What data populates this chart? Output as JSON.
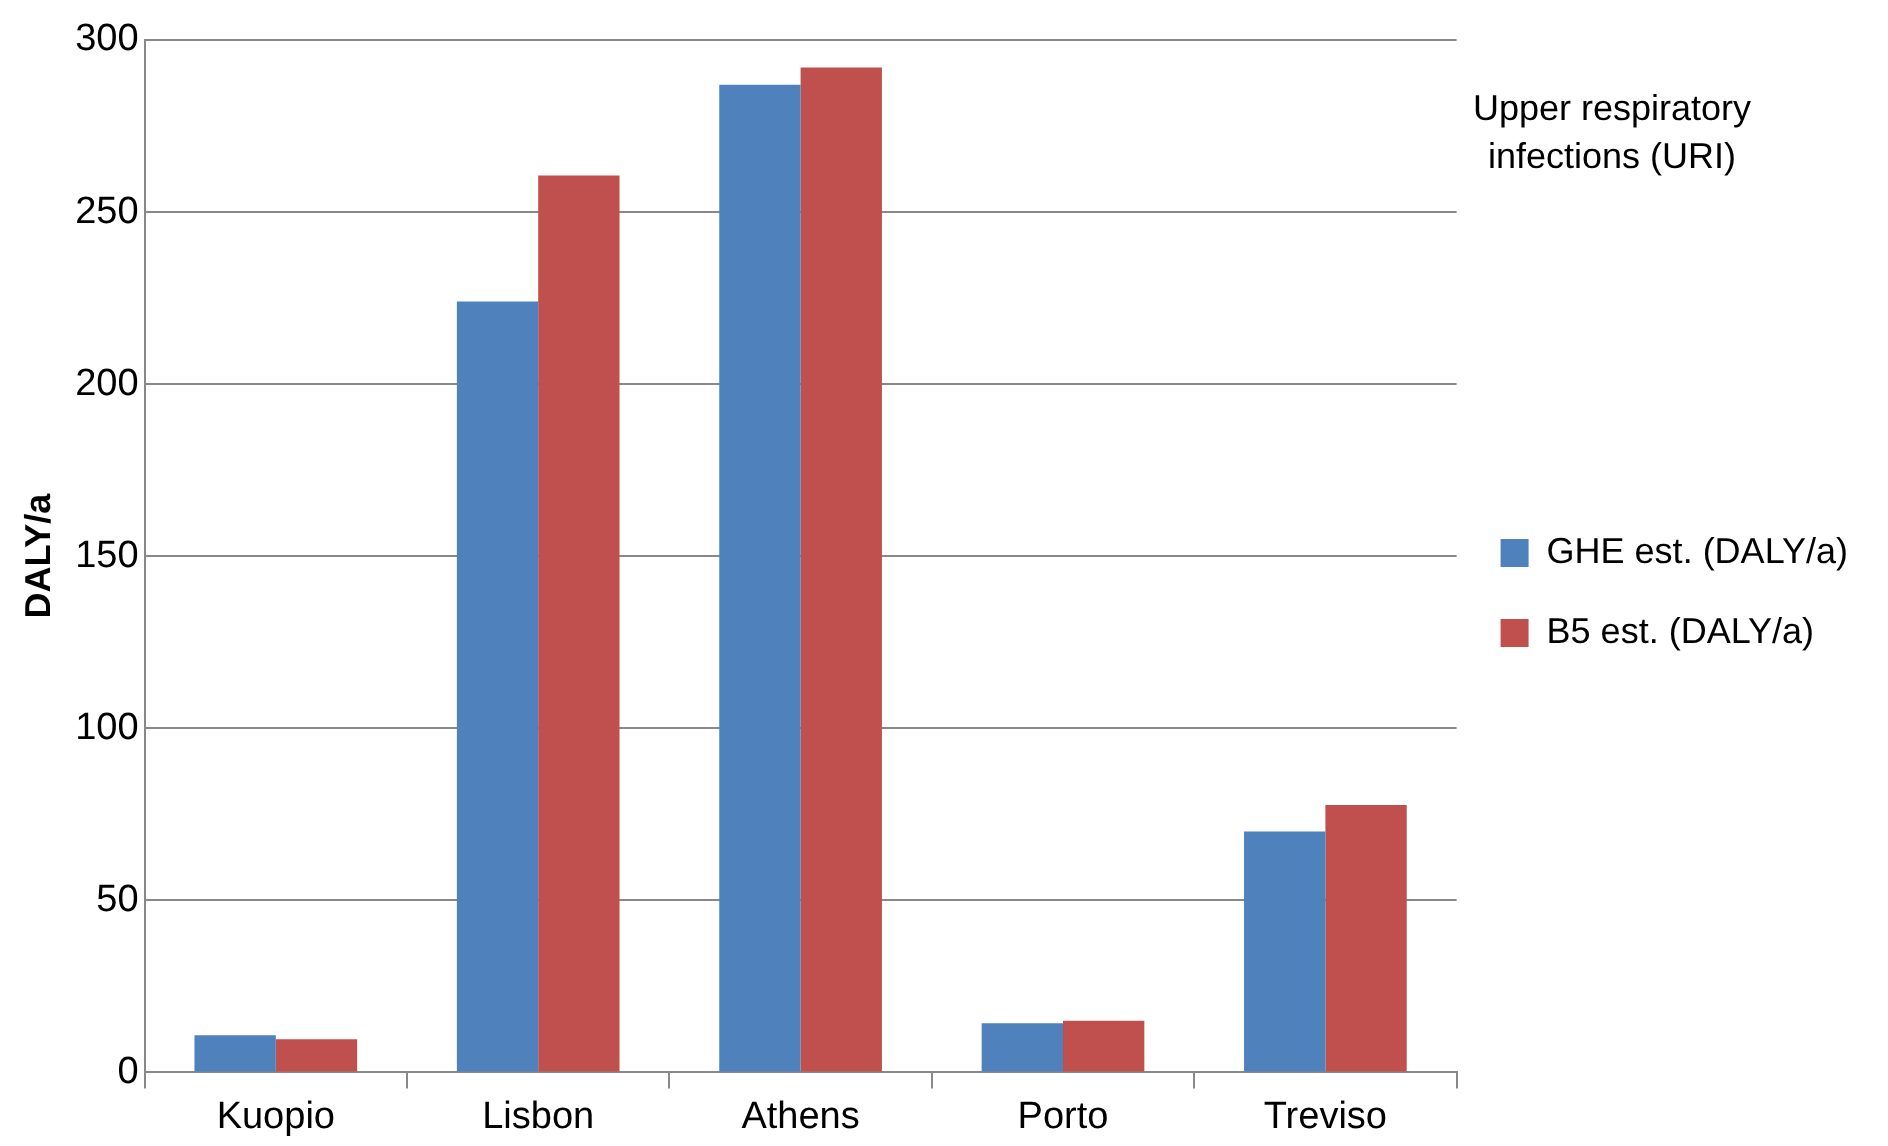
{
  "chart_data": {
    "type": "bar",
    "title": "Upper respiratory infections (URI)",
    "ylabel": "DALY/a",
    "categories": [
      "Kuopio",
      "Lisbon",
      "Athens",
      "Porto",
      "Treviso"
    ],
    "series": [
      {
        "name": "GHE est. (DALY/a)",
        "color": "#4f81bd",
        "values": [
          10.8,
          224,
          287,
          14.3,
          70
        ]
      },
      {
        "name": "B5 est. (DALY/a)",
        "color": "#c0504d",
        "values": [
          9.6,
          260.6,
          292,
          15,
          77.7
        ]
      }
    ],
    "ylim": [
      0,
      300
    ],
    "yticks": [
      0,
      50,
      100,
      150,
      200,
      250,
      300
    ],
    "grid": "y",
    "legend": "right"
  }
}
